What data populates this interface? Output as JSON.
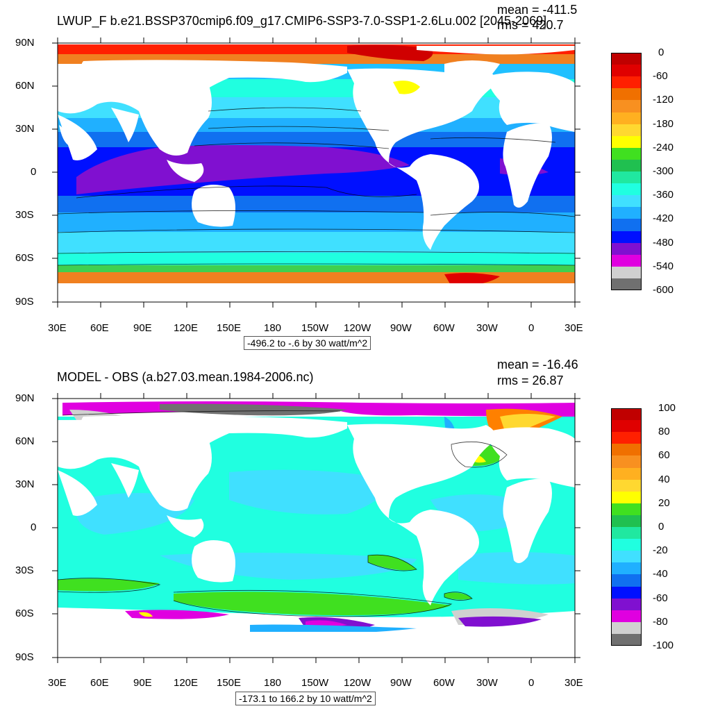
{
  "panels": [
    {
      "title": "LWUP_F b.e21.BSSP370cmip6.f09_g17.CMIP6-SSP3-7.0-SSP1-2.6Lu.002 [2045-2069]",
      "mean_text": "mean = -411.5",
      "rms_text": "rms = 420.7",
      "info_text": "-496.2 to -.6 by 30 watt/m^2",
      "colorbar_labels": [
        "0",
        "-60",
        "-120",
        "-180",
        "-240",
        "-300",
        "-360",
        "-420",
        "-480",
        "-540",
        "-600"
      ],
      "colorbar_colors": [
        "#c00000",
        "#e00000",
        "#ff2000",
        "#f07000",
        "#f89020",
        "#ffb020",
        "#ffd830",
        "#ffff00",
        "#40e020",
        "#20c050",
        "#20e8a0",
        "#20ffe0",
        "#40e0ff",
        "#20b0ff",
        "#1070f0",
        "#0010ff",
        "#8010d0",
        "#e000e0",
        "#d0d0d0",
        "#707070"
      ]
    },
    {
      "title": "MODEL - OBS (a.b27.03.mean.1984-2006.nc)",
      "mean_text": "mean = -16.46",
      "rms_text": "rms = 26.87",
      "info_text": "-173.1 to 166.2 by 10 watt/m^2",
      "colorbar_labels": [
        "100",
        "80",
        "60",
        "40",
        "20",
        "0",
        "-20",
        "-40",
        "-60",
        "-80",
        "-100"
      ],
      "colorbar_colors": [
        "#c00000",
        "#e00000",
        "#ff2000",
        "#f07000",
        "#f89020",
        "#ffb020",
        "#ffd830",
        "#ffff00",
        "#40e020",
        "#20c050",
        "#20e8a0",
        "#20ffe0",
        "#40e0ff",
        "#20b0ff",
        "#1070f0",
        "#0010ff",
        "#8010d0",
        "#e000e0",
        "#d0d0d0",
        "#707070"
      ]
    }
  ],
  "axis": {
    "lat_labels": [
      "90N",
      "60N",
      "30N",
      "0",
      "30S",
      "60S",
      "90S"
    ],
    "lon_labels": [
      "30E",
      "60E",
      "90E",
      "120E",
      "150E",
      "180",
      "150W",
      "120W",
      "90W",
      "60W",
      "30W",
      "0",
      "30E"
    ]
  }
}
